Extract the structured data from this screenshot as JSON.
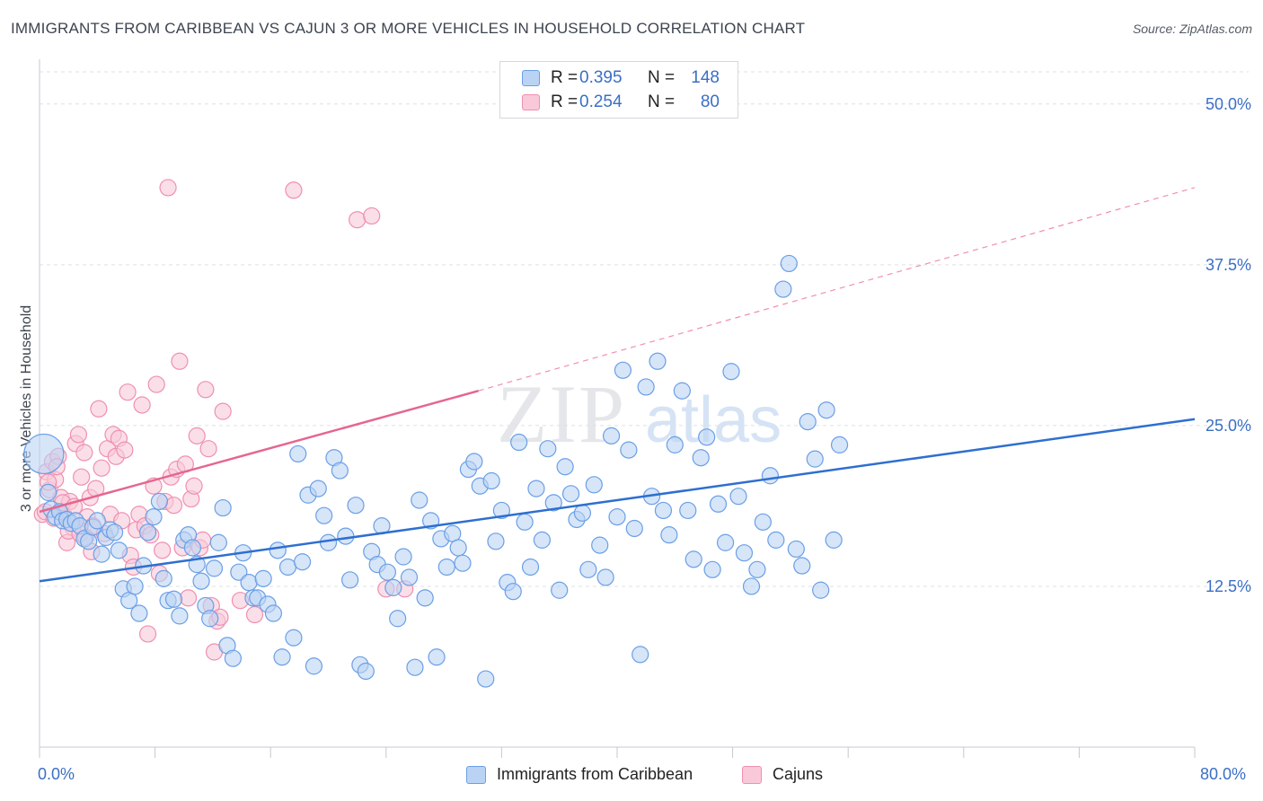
{
  "title": "IMMIGRANTS FROM CARIBBEAN VS CAJUN 3 OR MORE VEHICLES IN HOUSEHOLD CORRELATION CHART",
  "source": "Source: ZipAtlas.com",
  "watermark": {
    "zip": "ZIP",
    "atlas": "atlas"
  },
  "legend": {
    "rows": [
      {
        "r_label": "R =",
        "r_value": "0.395",
        "n_label": "N =",
        "n_value": "148",
        "color": "#6a9fe6"
      },
      {
        "r_label": "R =",
        "r_value": "0.254",
        "n_label": "N =",
        "n_value": "80",
        "color": "#f08fb0"
      }
    ]
  },
  "colors": {
    "blue_fill": "#bad3f4",
    "blue_stroke": "#6a9fe6",
    "blue_line": "#2e6fd0",
    "pink_fill": "#f9c9d9",
    "pink_stroke": "#f08fb0",
    "pink_line": "#e5668f",
    "tick_text": "#3a6fc4",
    "grid": "#dde0e5"
  },
  "x_axis": {
    "min_label": "0.0%",
    "max_label": "80.0%"
  },
  "chart_data": {
    "type": "scatter",
    "title": "IMMIGRANTS FROM CARIBBEAN VS CAJUN 3 OR MORE VEHICLES IN HOUSEHOLD CORRELATION CHART",
    "xlabel": "",
    "ylabel": "3 or more Vehicles in Household",
    "xlim": [
      0,
      80
    ],
    "ylim": [
      0,
      52.5
    ],
    "y_ticks": [
      {
        "value": 12.5,
        "label": "12.5%"
      },
      {
        "value": 25.0,
        "label": "25.0%"
      },
      {
        "value": 37.5,
        "label": "37.5%"
      },
      {
        "value": 50.0,
        "label": "50.0%"
      }
    ],
    "x_ticks": [
      0,
      8,
      16,
      24,
      32,
      40,
      48,
      56,
      64,
      72,
      80
    ],
    "grid": "horizontal dashed",
    "legend_position": "top-center",
    "series": [
      {
        "name": "Immigrants from Caribbean",
        "color": "#6a9fe6",
        "trend": {
          "x": [
            0,
            80
          ],
          "y": [
            12.9,
            25.5
          ]
        },
        "points": [
          [
            0.3,
            22.8
          ],
          [
            0.6,
            19.8
          ],
          [
            0.8,
            18.5
          ],
          [
            1.1,
            17.9
          ],
          [
            1.4,
            18.3
          ],
          [
            1.6,
            17.6
          ],
          [
            1.9,
            17.7
          ],
          [
            2.2,
            17.4
          ],
          [
            2.5,
            17.6
          ],
          [
            2.8,
            17.2
          ],
          [
            3.1,
            16.2
          ],
          [
            3.4,
            16.0
          ],
          [
            3.7,
            17.1
          ],
          [
            4.0,
            17.6
          ],
          [
            4.3,
            15.0
          ],
          [
            4.6,
            16.3
          ],
          [
            4.9,
            16.9
          ],
          [
            5.2,
            16.7
          ],
          [
            5.5,
            15.3
          ],
          [
            5.8,
            12.3
          ],
          [
            6.2,
            11.4
          ],
          [
            6.6,
            12.5
          ],
          [
            6.9,
            10.4
          ],
          [
            7.2,
            14.1
          ],
          [
            7.5,
            16.7
          ],
          [
            7.9,
            17.9
          ],
          [
            8.3,
            19.1
          ],
          [
            8.6,
            13.1
          ],
          [
            8.9,
            11.4
          ],
          [
            9.3,
            11.5
          ],
          [
            9.7,
            10.2
          ],
          [
            10.0,
            16.1
          ],
          [
            10.3,
            16.5
          ],
          [
            10.6,
            15.5
          ],
          [
            10.9,
            14.2
          ],
          [
            11.2,
            12.9
          ],
          [
            11.5,
            11.0
          ],
          [
            11.8,
            10.0
          ],
          [
            12.1,
            13.9
          ],
          [
            12.4,
            15.9
          ],
          [
            12.7,
            18.6
          ],
          [
            13.0,
            7.9
          ],
          [
            13.4,
            6.9
          ],
          [
            13.8,
            13.6
          ],
          [
            14.1,
            15.1
          ],
          [
            14.5,
            12.8
          ],
          [
            14.8,
            11.6
          ],
          [
            15.1,
            11.6
          ],
          [
            15.5,
            13.1
          ],
          [
            15.8,
            11.1
          ],
          [
            16.2,
            10.4
          ],
          [
            16.5,
            15.3
          ],
          [
            16.8,
            7.0
          ],
          [
            17.2,
            14.0
          ],
          [
            17.6,
            8.5
          ],
          [
            17.9,
            22.8
          ],
          [
            18.2,
            14.4
          ],
          [
            18.6,
            19.6
          ],
          [
            19.0,
            6.3
          ],
          [
            19.3,
            20.1
          ],
          [
            19.7,
            18.0
          ],
          [
            20.0,
            15.9
          ],
          [
            20.4,
            22.5
          ],
          [
            20.8,
            21.5
          ],
          [
            21.2,
            16.4
          ],
          [
            21.5,
            13.0
          ],
          [
            21.9,
            18.8
          ],
          [
            22.2,
            6.4
          ],
          [
            22.6,
            5.9
          ],
          [
            23.0,
            15.2
          ],
          [
            23.4,
            14.2
          ],
          [
            23.7,
            17.2
          ],
          [
            24.1,
            13.6
          ],
          [
            24.5,
            12.4
          ],
          [
            24.8,
            10.0
          ],
          [
            25.2,
            14.8
          ],
          [
            25.6,
            13.2
          ],
          [
            26.0,
            6.2
          ],
          [
            26.3,
            19.2
          ],
          [
            26.7,
            11.6
          ],
          [
            27.1,
            17.6
          ],
          [
            27.5,
            7.0
          ],
          [
            27.8,
            16.2
          ],
          [
            28.2,
            14.0
          ],
          [
            28.6,
            16.6
          ],
          [
            29.0,
            15.5
          ],
          [
            29.3,
            14.3
          ],
          [
            29.7,
            21.6
          ],
          [
            30.1,
            22.2
          ],
          [
            30.5,
            20.3
          ],
          [
            30.9,
            5.3
          ],
          [
            31.3,
            20.7
          ],
          [
            31.6,
            16.0
          ],
          [
            32.0,
            18.4
          ],
          [
            32.4,
            12.8
          ],
          [
            32.8,
            12.1
          ],
          [
            33.2,
            23.7
          ],
          [
            33.6,
            17.5
          ],
          [
            34.0,
            14.0
          ],
          [
            34.4,
            20.1
          ],
          [
            34.8,
            16.1
          ],
          [
            35.2,
            23.2
          ],
          [
            35.6,
            19.0
          ],
          [
            36.0,
            12.2
          ],
          [
            36.4,
            21.8
          ],
          [
            36.8,
            19.7
          ],
          [
            37.2,
            17.7
          ],
          [
            37.6,
            18.2
          ],
          [
            38.0,
            13.8
          ],
          [
            38.4,
            20.4
          ],
          [
            38.8,
            15.7
          ],
          [
            39.2,
            13.2
          ],
          [
            39.6,
            24.2
          ],
          [
            40.0,
            17.9
          ],
          [
            40.4,
            29.3
          ],
          [
            40.8,
            23.1
          ],
          [
            41.2,
            17.0
          ],
          [
            41.6,
            7.2
          ],
          [
            42.0,
            28.0
          ],
          [
            42.4,
            19.5
          ],
          [
            42.8,
            30.0
          ],
          [
            43.2,
            18.4
          ],
          [
            43.6,
            16.5
          ],
          [
            44.0,
            23.5
          ],
          [
            44.5,
            27.7
          ],
          [
            44.9,
            18.4
          ],
          [
            45.3,
            14.6
          ],
          [
            45.8,
            22.5
          ],
          [
            46.2,
            24.1
          ],
          [
            46.6,
            13.8
          ],
          [
            47.0,
            18.9
          ],
          [
            47.5,
            15.9
          ],
          [
            47.9,
            29.2
          ],
          [
            48.4,
            19.5
          ],
          [
            48.8,
            15.1
          ],
          [
            49.3,
            12.5
          ],
          [
            49.7,
            13.8
          ],
          [
            50.1,
            17.5
          ],
          [
            50.6,
            21.1
          ],
          [
            51.0,
            16.1
          ],
          [
            51.5,
            35.6
          ],
          [
            51.9,
            37.6
          ],
          [
            52.4,
            15.4
          ],
          [
            52.8,
            14.1
          ],
          [
            53.2,
            25.3
          ],
          [
            53.7,
            22.4
          ],
          [
            54.1,
            12.2
          ],
          [
            54.5,
            26.2
          ],
          [
            55.0,
            16.1
          ],
          [
            55.4,
            23.5
          ]
        ]
      },
      {
        "name": "Cajuns",
        "color": "#f08fb0",
        "trend": {
          "x": [
            0,
            30.4
          ],
          "y": [
            18.3,
            27.7
          ],
          "dashed_extension": {
            "x": [
              30.4,
              80
            ],
            "y": [
              27.7,
              43.5
            ]
          }
        },
        "points": [
          [
            0.2,
            18.1
          ],
          [
            0.5,
            21.4
          ],
          [
            0.7,
            20.0
          ],
          [
            0.9,
            22.2
          ],
          [
            1.1,
            20.8
          ],
          [
            1.3,
            22.6
          ],
          [
            1.5,
            19.4
          ],
          [
            1.7,
            18.0
          ],
          [
            1.9,
            15.9
          ],
          [
            2.1,
            19.1
          ],
          [
            2.3,
            17.1
          ],
          [
            2.5,
            23.6
          ],
          [
            2.7,
            24.3
          ],
          [
            2.9,
            21.0
          ],
          [
            3.1,
            22.9
          ],
          [
            3.3,
            17.9
          ],
          [
            3.5,
            19.4
          ],
          [
            3.7,
            17.2
          ],
          [
            3.9,
            20.1
          ],
          [
            4.1,
            26.3
          ],
          [
            4.3,
            21.7
          ],
          [
            4.5,
            16.6
          ],
          [
            4.7,
            23.2
          ],
          [
            4.9,
            18.1
          ],
          [
            5.1,
            24.3
          ],
          [
            5.3,
            22.6
          ],
          [
            5.5,
            24.0
          ],
          [
            5.7,
            17.6
          ],
          [
            5.9,
            23.1
          ],
          [
            6.1,
            27.6
          ],
          [
            6.3,
            14.9
          ],
          [
            6.5,
            14.0
          ],
          [
            6.7,
            16.9
          ],
          [
            6.9,
            18.1
          ],
          [
            7.1,
            26.6
          ],
          [
            7.3,
            17.2
          ],
          [
            7.5,
            8.8
          ],
          [
            7.7,
            16.5
          ],
          [
            7.9,
            20.3
          ],
          [
            8.1,
            28.2
          ],
          [
            8.3,
            13.5
          ],
          [
            8.5,
            15.3
          ],
          [
            8.7,
            19.1
          ],
          [
            8.9,
            43.5
          ],
          [
            9.1,
            21.0
          ],
          [
            9.3,
            18.8
          ],
          [
            9.5,
            21.6
          ],
          [
            9.7,
            30.0
          ],
          [
            9.9,
            15.5
          ],
          [
            10.1,
            22.0
          ],
          [
            10.3,
            11.6
          ],
          [
            10.5,
            19.3
          ],
          [
            10.7,
            20.3
          ],
          [
            10.9,
            24.2
          ],
          [
            11.1,
            15.5
          ],
          [
            11.3,
            16.1
          ],
          [
            11.5,
            27.8
          ],
          [
            11.7,
            23.2
          ],
          [
            11.9,
            11.0
          ],
          [
            12.1,
            7.4
          ],
          [
            12.3,
            9.8
          ],
          [
            12.5,
            10.1
          ],
          [
            12.7,
            26.1
          ],
          [
            17.6,
            43.3
          ],
          [
            22.0,
            41.0
          ],
          [
            23.0,
            41.3
          ],
          [
            24.0,
            12.3
          ],
          [
            25.3,
            12.3
          ],
          [
            14.9,
            10.3
          ],
          [
            13.9,
            11.4
          ],
          [
            0.4,
            18.3
          ],
          [
            0.6,
            20.6
          ],
          [
            1.0,
            17.8
          ],
          [
            1.2,
            21.8
          ],
          [
            1.6,
            19.0
          ],
          [
            2.0,
            16.8
          ],
          [
            2.4,
            18.7
          ],
          [
            2.8,
            16.6
          ],
          [
            3.2,
            16.3
          ],
          [
            3.6,
            15.2
          ]
        ]
      }
    ]
  }
}
